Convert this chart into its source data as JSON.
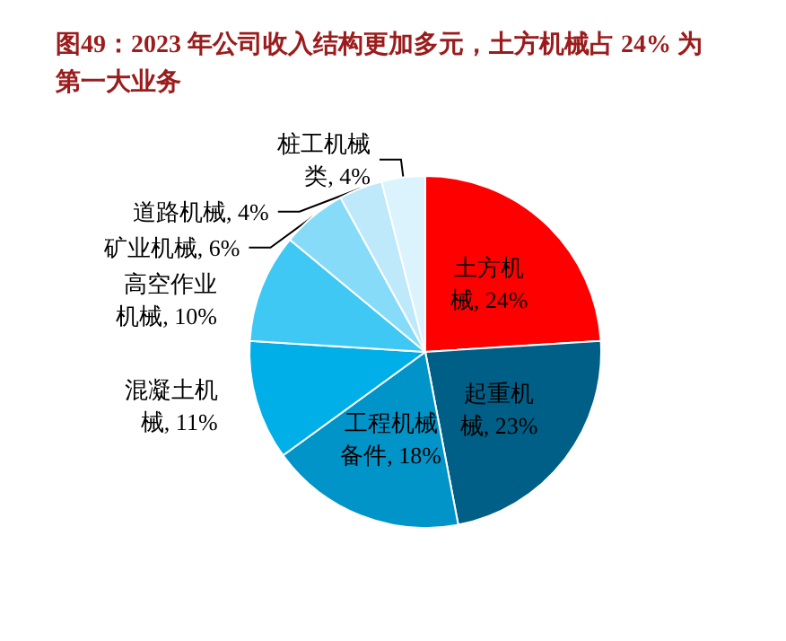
{
  "chart_data": {
    "type": "pie",
    "title": "图49：2023 年公司收入结构更加多元，土方机械占 24% 为第一大业务",
    "categories": [
      "土方机械",
      "起重机械",
      "工程机械备件",
      "混凝土机械",
      "高空作业机械",
      "矿业机械",
      "道路机械",
      "桩工机械类"
    ],
    "values": [
      24,
      23,
      18,
      11,
      10,
      6,
      4,
      4
    ],
    "value_labels": [
      "24%",
      "23%",
      "18%",
      "11%",
      "10%",
      "6%",
      "4%",
      "4%"
    ],
    "colors": [
      "#ff0000",
      "#005f86",
      "#0094c8",
      "#00aee8",
      "#3fc8f4",
      "#86dcf8",
      "#bde9fa",
      "#daf3fc"
    ],
    "legend": false
  }
}
